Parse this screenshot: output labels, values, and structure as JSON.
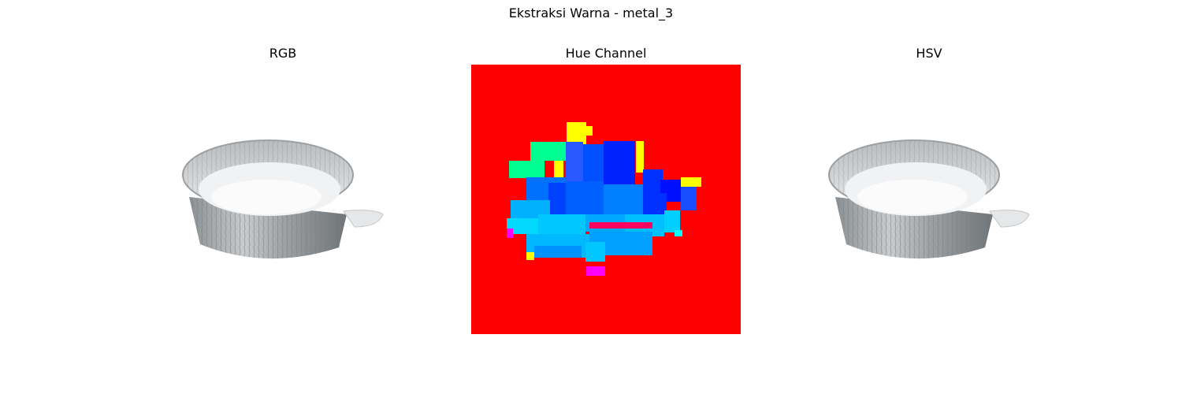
{
  "figure": {
    "title": "Ekstraksi Warna - metal_3"
  },
  "panels": [
    {
      "title": "RGB",
      "image": "aluminum-foil-pan-photo"
    },
    {
      "title": "Hue Channel",
      "image": "hue-channel-map",
      "background_color": "#ff0000"
    },
    {
      "title": "HSV",
      "image": "aluminum-foil-pan-photo"
    }
  ]
}
